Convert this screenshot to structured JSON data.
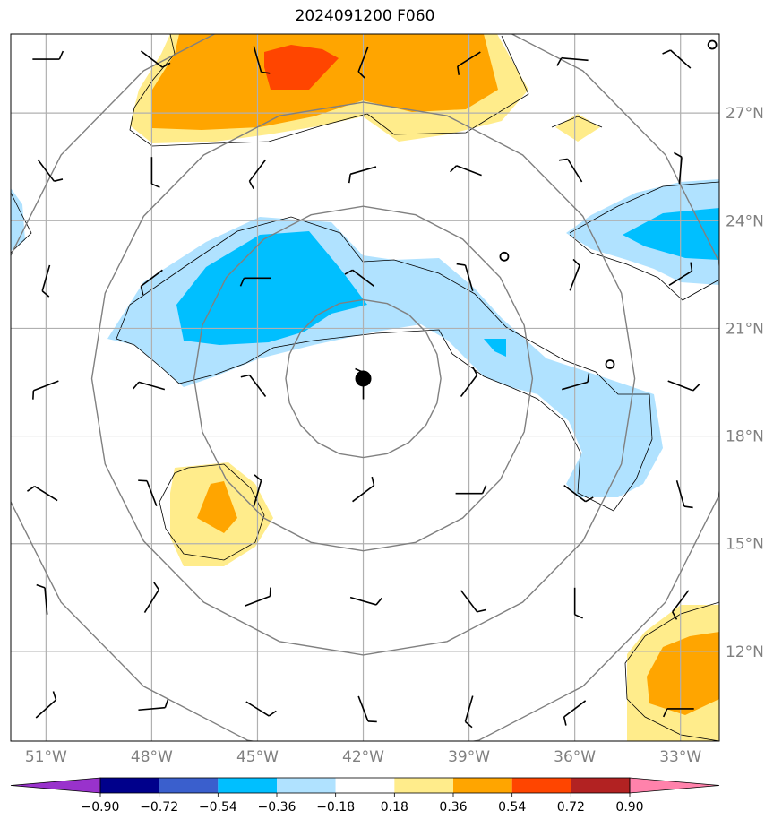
{
  "title": "2024091200 F060",
  "map": {
    "lon_range": [
      -52.0,
      -31.9
    ],
    "lat_range": [
      9.5,
      29.2
    ],
    "center_marker": {
      "lon": -42.0,
      "lat": 19.6
    },
    "small_circles": [
      {
        "lon": -38.0,
        "lat": 23.0
      },
      {
        "lon": -35.0,
        "lat": 20.0
      },
      {
        "lon": -32.1,
        "lat": 28.9
      }
    ],
    "lat_ticks": [
      {
        "value": 27,
        "label": "27°N"
      },
      {
        "value": 24,
        "label": "24°N"
      },
      {
        "value": 21,
        "label": "21°N"
      },
      {
        "value": 18,
        "label": "18°N"
      },
      {
        "value": 15,
        "label": "15°N"
      },
      {
        "value": 12,
        "label": "12°N"
      }
    ],
    "lon_ticks": [
      {
        "value": -51,
        "label": "51°W"
      },
      {
        "value": -48,
        "label": "48°W"
      },
      {
        "value": -45,
        "label": "45°W"
      },
      {
        "value": -42,
        "label": "42°W"
      },
      {
        "value": -39,
        "label": "39°W"
      },
      {
        "value": -36,
        "label": "36°W"
      },
      {
        "value": -33,
        "label": "33°W"
      }
    ],
    "range_rings_deg": [
      2.2,
      4.8,
      7.7,
      10.6
    ]
  },
  "colorbar": {
    "levels": [
      "−0.90",
      "−0.72",
      "−0.54",
      "−0.36",
      "−0.18",
      "0.18",
      "0.36",
      "0.54",
      "0.72",
      "0.90"
    ],
    "colors": [
      "#9932cc",
      "#00008b",
      "#3a5fcd",
      "#00bfff",
      "#b0e2ff",
      "#ffffff",
      "#ffec8b",
      "#ffa500",
      "#ff4500",
      "#b22222",
      "#ff82ab"
    ]
  }
}
